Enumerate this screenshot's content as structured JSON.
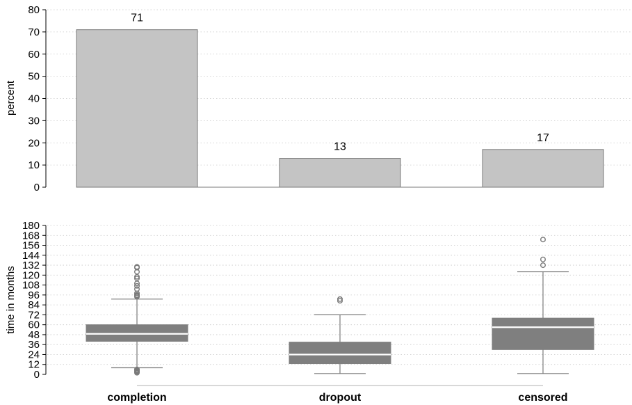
{
  "chart_data": [
    {
      "type": "bar",
      "ylabel": "percent",
      "ylim": [
        0,
        80
      ],
      "yticks": [
        0,
        10,
        20,
        30,
        40,
        50,
        60,
        70,
        80
      ],
      "grid": true,
      "categories": [
        "completion",
        "dropout",
        "censored"
      ],
      "values": [
        71,
        13,
        17
      ],
      "data_labels": [
        "71",
        "13",
        "17"
      ],
      "colors": {
        "bar_fill": "#c4c4c4",
        "bar_stroke": "#7a7a7a",
        "grid": "#c8c8c8"
      }
    },
    {
      "type": "box",
      "ylabel": "time in months",
      "ylim": [
        0,
        180
      ],
      "yticks": [
        0,
        12,
        24,
        36,
        48,
        60,
        72,
        84,
        96,
        108,
        120,
        132,
        144,
        156,
        168,
        180
      ],
      "grid": true,
      "categories": [
        "completion",
        "dropout",
        "censored"
      ],
      "boxes": [
        {
          "q1": 40,
          "median": 49,
          "q3": 60,
          "whisker_low": 8,
          "whisker_high": 91,
          "outliers": [
            6,
            5,
            4,
            3,
            2,
            94,
            95,
            96,
            98,
            103,
            107,
            110,
            116,
            118,
            124,
            129,
            130
          ]
        },
        {
          "q1": 13,
          "median": 24,
          "q3": 39,
          "whisker_low": 1,
          "whisker_high": 72,
          "outliers": [
            89,
            91
          ]
        },
        {
          "q1": 30,
          "median": 57,
          "q3": 68,
          "whisker_low": 1,
          "whisker_high": 124,
          "outliers": [
            132,
            139,
            163
          ]
        }
      ],
      "colors": {
        "box_fill": "#7f7f7f",
        "median": "#ffffff",
        "whisker": "#7a7a7a",
        "outlier": "#7a7a7a",
        "grid": "#c8c8c8"
      }
    }
  ]
}
